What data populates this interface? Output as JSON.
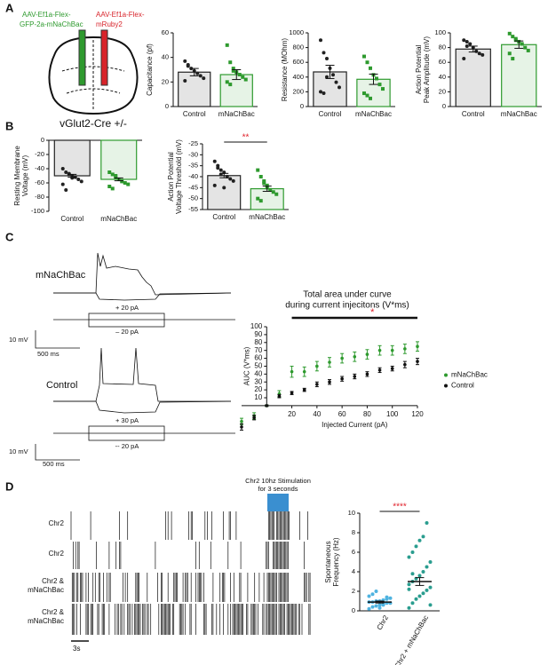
{
  "figure": {
    "panel_labels": [
      "A",
      "B",
      "C",
      "D"
    ],
    "schematic": {
      "green_virus": [
        "AAV-Ef1a-Flex-",
        "GFP-2a-mNaChBac"
      ],
      "red_virus": [
        "AAV-Ef1a-Flex-",
        "mRuby2"
      ],
      "mouse": "vGlut2-Cre +/-"
    },
    "traces": {
      "top": {
        "label": "mNaChBac",
        "step_up": "+ 20 pA",
        "step_down": "– 20 pA",
        "scale_v": "10 mV",
        "scale_t": "500 ms"
      },
      "bottom": {
        "label": "Control",
        "step_up": "+ 30 pA",
        "step_down": "-- 20 pA",
        "scale_v": "10 mV",
        "scale_t": "500 ms"
      }
    },
    "raster": {
      "stimulation": [
        "Chr2 10hz Stimulation",
        "for 3 seconds"
      ],
      "rows": [
        [
          "Chr2"
        ],
        [
          "Chr2"
        ],
        [
          "Chr2 &",
          "mNaChBac"
        ],
        [
          "Chr2 &",
          "mNaChBac"
        ]
      ],
      "scale": "3s"
    }
  },
  "chart_data": [
    {
      "type": "bar",
      "ylabel": [
        "Capacitance (pf)"
      ],
      "categories": [
        "Control",
        "mNaChBac"
      ],
      "colors": [
        "#222222",
        "#2e9a2e"
      ],
      "markers": [
        "circle",
        "square"
      ],
      "values": [
        28,
        26
      ],
      "errors": [
        3,
        4
      ],
      "points": [
        [
          37,
          33,
          31,
          29,
          27,
          25,
          23,
          21,
          34
        ],
        [
          50,
          36,
          31,
          28,
          26,
          24,
          22,
          20,
          18,
          29
        ]
      ],
      "ylim": [
        0,
        60
      ],
      "yticks": [
        0,
        20,
        40,
        60
      ]
    },
    {
      "type": "bar",
      "ylabel": [
        "Resistance (MOhm)"
      ],
      "categories": [
        "Control",
        "mNaChBac"
      ],
      "colors": [
        "#222222",
        "#2e9a2e"
      ],
      "markers": [
        "circle",
        "square"
      ],
      "values": [
        470,
        370
      ],
      "errors": [
        90,
        70
      ],
      "points": [
        [
          900,
          730,
          650,
          520,
          430,
          330,
          260,
          200,
          180,
          400
        ],
        [
          680,
          600,
          520,
          430,
          380,
          300,
          240,
          180,
          150,
          110
        ]
      ],
      "ylim": [
        0,
        1000
      ],
      "yticks": [
        0,
        200,
        400,
        600,
        800,
        1000
      ]
    },
    {
      "type": "bar",
      "ylabel": [
        "Action Potential",
        "Peak Amplitude (mV)"
      ],
      "categories": [
        "Control",
        "mNaChBac"
      ],
      "colors": [
        "#222222",
        "#2e9a2e"
      ],
      "markers": [
        "circle",
        "square"
      ],
      "values": [
        78,
        84
      ],
      "errors": [
        4,
        5
      ],
      "points": [
        [
          90,
          88,
          85,
          80,
          75,
          72,
          70,
          65,
          82
        ],
        [
          99,
          95,
          92,
          88,
          85,
          80,
          76,
          72,
          65,
          90
        ]
      ],
      "ylim": [
        0,
        100
      ],
      "yticks": [
        0,
        20,
        40,
        60,
        80,
        100
      ]
    },
    {
      "type": "bar",
      "ylabel": [
        "Resting Membrane",
        "Voltage (mV)"
      ],
      "categories": [
        "Control",
        "mNaChBac"
      ],
      "colors": [
        "#222222",
        "#2e9a2e"
      ],
      "markers": [
        "circle",
        "square"
      ],
      "values": [
        -50,
        -55
      ],
      "errors": [
        2,
        2
      ],
      "points": [
        [
          -40,
          -45,
          -48,
          -50,
          -52,
          -55,
          -58,
          -62,
          -70,
          -47,
          -53
        ],
        [
          -45,
          -48,
          -52,
          -55,
          -58,
          -60,
          -62,
          -65,
          -68,
          -50
        ]
      ],
      "ylim": [
        -100,
        0
      ],
      "yticks": [
        0,
        -20,
        -40,
        -60,
        -80,
        -100
      ]
    },
    {
      "type": "bar",
      "ylabel": [
        "Action Potential",
        "Voltage Threshold (mV)"
      ],
      "categories": [
        "Control",
        "mNaChBac"
      ],
      "colors": [
        "#222222",
        "#2e9a2e"
      ],
      "markers": [
        "circle",
        "square"
      ],
      "values": [
        -39.5,
        -45.5
      ],
      "errors": [
        1,
        1.2
      ],
      "points": [
        [
          -33,
          -35,
          -37,
          -38,
          -40,
          -41,
          -42,
          -44,
          -36,
          -39,
          -45
        ],
        [
          -37,
          -40,
          -42,
          -44,
          -46,
          -47,
          -48,
          -50,
          -51,
          -43,
          -45
        ]
      ],
      "ylim": [
        -55,
        -25
      ],
      "yticks": [
        -25,
        -30,
        -35,
        -40,
        -45,
        -50,
        -55
      ],
      "significance": "**",
      "significance_color": "#e0202a"
    },
    {
      "type": "scatter",
      "title": [
        "Total area under curve",
        "during current injecitons (V*ms)"
      ],
      "xlabel": "Injected Current (pA)",
      "ylabel": [
        "AUC (V*ms)"
      ],
      "x": [
        -20,
        -10,
        0,
        10,
        20,
        30,
        40,
        50,
        60,
        70,
        80,
        90,
        100,
        110,
        120
      ],
      "series": [
        {
          "name": "mNaChBac",
          "color": "#2e9a2e",
          "values": [
            -20,
            -13,
            0,
            15,
            43,
            43,
            50,
            55,
            60,
            62,
            65,
            70,
            70,
            72,
            75
          ],
          "errors": [
            4,
            4,
            1,
            4,
            7,
            6,
            6,
            6,
            6,
            6,
            6,
            6,
            6,
            6,
            6
          ]
        },
        {
          "name": "Control",
          "color": "#111111",
          "values": [
            -27,
            -15,
            0,
            12,
            16,
            20,
            27,
            30,
            34,
            37,
            40,
            45,
            47,
            52,
            56
          ],
          "errors": [
            4,
            3,
            1,
            2,
            2,
            2,
            3,
            3,
            3,
            3,
            3,
            3,
            3,
            4,
            4
          ]
        }
      ],
      "xlim": [
        -20,
        120
      ],
      "ylim": [
        -35,
        100
      ],
      "xticks": [
        20,
        40,
        60,
        80,
        100,
        120
      ],
      "yticks": [
        10,
        20,
        30,
        40,
        50,
        60,
        70,
        80,
        90,
        100
      ],
      "legend": "right",
      "significance": "*",
      "significance_color": "#e0202a"
    },
    {
      "type": "strip",
      "ylabel": [
        "Spontaneous",
        "Frequency (Hz)"
      ],
      "categories": [
        "Chr2",
        "Chr2 + mNaChBac"
      ],
      "colors": [
        "#4fb3e0",
        "#2a9d8f"
      ],
      "markers": [
        "circle",
        "circle"
      ],
      "values": [
        0.9,
        3.0
      ],
      "errors": [
        0.1,
        0.4
      ],
      "points": [
        [
          0.2,
          0.4,
          0.5,
          0.6,
          0.7,
          0.8,
          0.8,
          0.9,
          0.9,
          1.0,
          1.0,
          1.1,
          1.2,
          1.3,
          1.5,
          1.7,
          2.0,
          0.3,
          0.6,
          1.4
        ],
        [
          0.3,
          0.8,
          1.2,
          1.5,
          1.8,
          2.1,
          2.4,
          2.7,
          3.0,
          3.3,
          3.6,
          4.0,
          4.5,
          5.0,
          5.5,
          6.0,
          6.6,
          7.2,
          7.6,
          9.0,
          0.6,
          2.2,
          3.8
        ]
      ],
      "ylim": [
        0,
        10
      ],
      "yticks": [
        0,
        2,
        4,
        6,
        8,
        10
      ],
      "significance": "****",
      "significance_color": "#e0202a"
    }
  ]
}
